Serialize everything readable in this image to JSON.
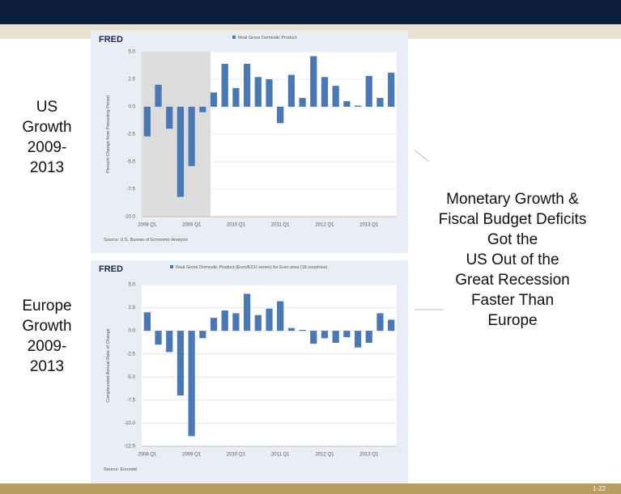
{
  "slide": {
    "left_labels": [
      [
        "US",
        "Growth",
        "2009-",
        "2013"
      ],
      [
        "Europe",
        "Growth",
        "2009-",
        "2013"
      ]
    ],
    "message": [
      "Monetary Growth &",
      "Fiscal Budget Deficits",
      "Got the",
      "US Out of the",
      "Great Recession",
      "Faster Than",
      "Europe"
    ],
    "page_number": "1-22"
  },
  "chart_data": [
    {
      "type": "bar",
      "brand": "FRED",
      "y_label": "Percent Change from Preceding Period",
      "source": "Source: U.S. Bureau of Economic Analysis",
      "categories": [
        "2008 Q1",
        null,
        null,
        null,
        "2009 Q1",
        null,
        null,
        null,
        "2010 Q1",
        null,
        null,
        null,
        "2011 Q1",
        null,
        null,
        null,
        "2012 Q1",
        null,
        null,
        null,
        "2013 Q1",
        null,
        null
      ],
      "series": [
        {
          "name": "Real Gross Domestic Product",
          "color": "#4a78b5",
          "values": [
            -2.7,
            2.0,
            -2.0,
            -8.2,
            -5.4,
            -0.5,
            1.3,
            3.9,
            1.7,
            3.9,
            2.7,
            2.5,
            -1.5,
            2.9,
            0.8,
            4.6,
            2.7,
            1.9,
            0.5,
            0.1,
            2.8,
            0.8,
            3.1
          ]
        }
      ],
      "ylim": [
        -10,
        5
      ],
      "yticks": [
        {
          "value": -10,
          "label": "-10.0"
        },
        -7.5,
        {
          "value": -5,
          "label": "-5.0"
        },
        -2.5,
        {
          "value": 0,
          "label": "0.0"
        },
        2.5,
        {
          "value": 5,
          "label": "5.0"
        }
      ],
      "grid": true
    },
    {
      "type": "bar",
      "brand": "FRED",
      "y_label": "Compounded Annual Rate of Change",
      "source": "Source: Eurostat",
      "categories": [
        "2008 Q1",
        null,
        null,
        null,
        "2009 Q1",
        null,
        null,
        null,
        "2010 Q1",
        null,
        null,
        null,
        "2011 Q1",
        null,
        null,
        null,
        "2012 Q1",
        null,
        null,
        null,
        "2013 Q1",
        null,
        null
      ],
      "series": [
        {
          "name": "Real Gross Domestic Product (Euro/ECU series) for Euro area (18 countries)",
          "color": "#4a78b5",
          "values": [
            2.0,
            -1.5,
            -2.3,
            -7.0,
            -11.4,
            -0.8,
            1.4,
            2.2,
            1.9,
            4.0,
            1.7,
            2.4,
            3.2,
            0.3,
            0.1,
            -1.4,
            -0.8,
            -1.3,
            -0.7,
            -1.8,
            -1.3,
            1.9,
            1.2
          ]
        }
      ],
      "ylim": [
        -12.5,
        5
      ],
      "yticks": [
        -12.5,
        {
          "value": -10,
          "label": "-10.0"
        },
        -7.5,
        {
          "value": -5,
          "label": "-5.0"
        },
        -2.5,
        {
          "value": 0,
          "label": "0.0"
        },
        2.5,
        {
          "value": 5,
          "label": "5.0"
        }
      ],
      "grid": true
    }
  ]
}
